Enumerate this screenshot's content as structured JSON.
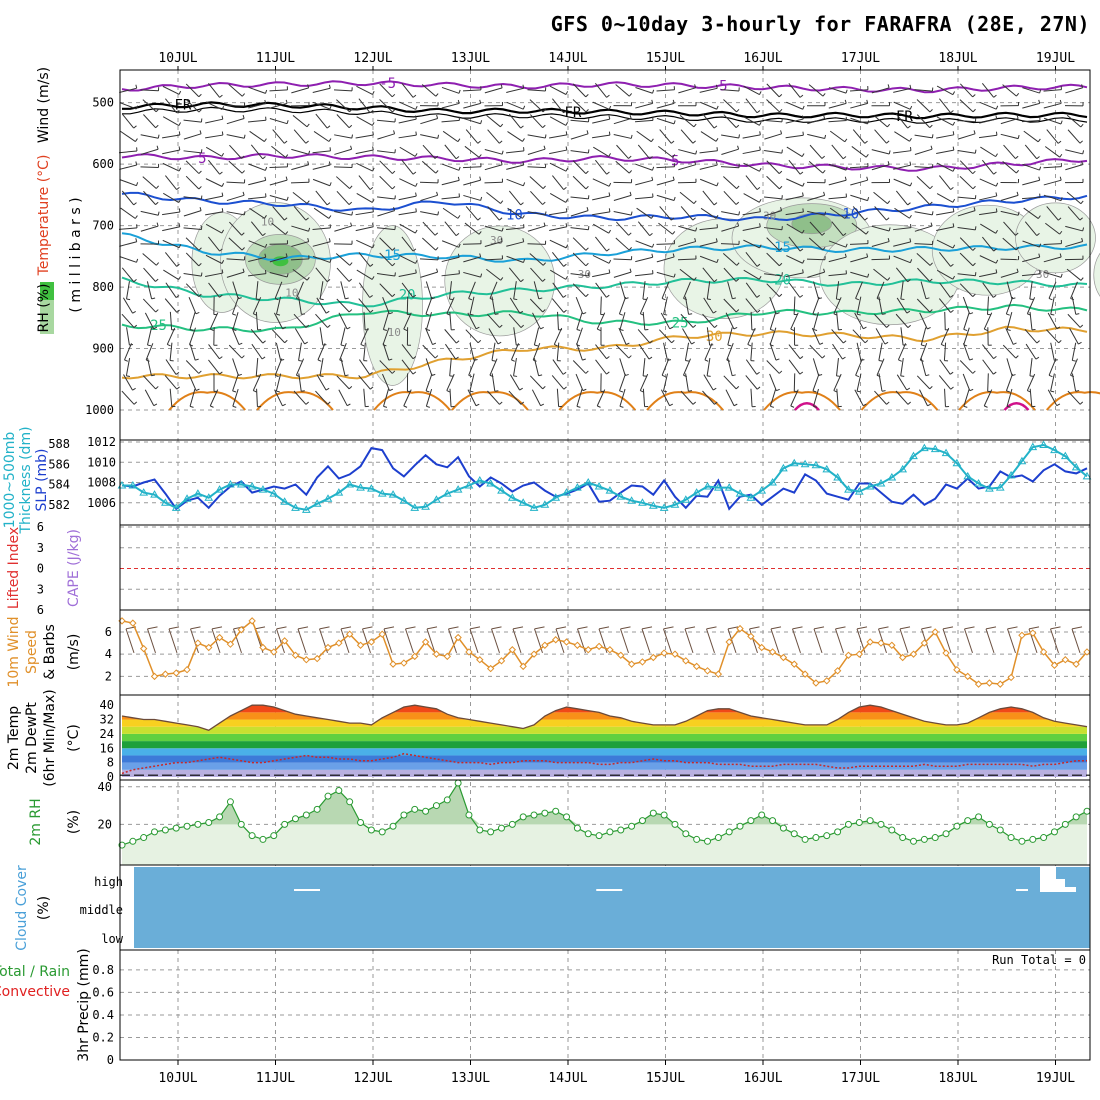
{
  "title": "GFS 0~10day 3-hourly for FARAFRA (28E, 27N)",
  "dates": [
    "10JUL",
    "11JUL",
    "12JUL",
    "13JUL",
    "14JUL",
    "15JUL",
    "16JUL",
    "17JUL",
    "18JUL",
    "19JUL"
  ],
  "labels": {
    "upper_rh": "RH (%)",
    "upper_temp": "Temperature (°C)",
    "upper_wind": "Wind (m/s)",
    "upper_mb": "( m i l l i b a r s )",
    "slp": "SLP (mb)",
    "thick_a": "1000~500mb",
    "thick_b": "Thickness (dm)",
    "li": "Lifted Index",
    "cape": "CAPE (J/kg)",
    "wind_a": "10m Wind",
    "wind_b": "Speed",
    "wind_c": "& Barbs",
    "wind_unit": "(m/s)",
    "temp_a": "2m Temp",
    "temp_b": "2m DewPt",
    "temp_c": "(6hr Min/Max)",
    "temp_unit": "(°C)",
    "rh_a": "2m RH",
    "rh_unit": "(%)",
    "cloud_a": "Cloud Cover",
    "cloud_unit": "(%)",
    "precip_a": "Total / Rain",
    "precip_b": "Convective",
    "precip_c": "3hr Precip (mm)",
    "run_total": "Run Total = 0",
    "contour_FR": "FR"
  },
  "chart_data": [
    {
      "id": "upper_air",
      "type": "heatmap",
      "title": "",
      "ylabel": "(millibars)",
      "yticks": [
        500,
        600,
        700,
        800,
        900,
        1000
      ],
      "ylim": [
        455,
        1000
      ],
      "temperature_contours_C": [
        {
          "value": -5,
          "label": "-5",
          "color": "#8e1fb0",
          "mb": [
            478,
            472,
            470,
            468,
            471,
            474,
            470,
            472,
            475,
            478,
            480,
            476,
            474
          ]
        },
        {
          "value": 0,
          "label": "FR",
          "color": "#000000",
          "mb": [
            507,
            503,
            504,
            508,
            514,
            513,
            515,
            517,
            521,
            520,
            522,
            520,
            520
          ]
        },
        {
          "value": 5,
          "label": "5",
          "color": "#8e1fb0",
          "mb": [
            586,
            590,
            586,
            589,
            591,
            595,
            590,
            594,
            602,
            605,
            608,
            600,
            592
          ]
        },
        {
          "value": 10,
          "label": "10",
          "color": "#1b4fd0",
          "mb": [
            648,
            660,
            665,
            676,
            660,
            682,
            688,
            685,
            690,
            680,
            670,
            660,
            652
          ]
        },
        {
          "value": 15,
          "label": "15",
          "color": "#1aa0d8",
          "mb": [
            715,
            742,
            754,
            748,
            750,
            758,
            745,
            738,
            735,
            740,
            738,
            736,
            734
          ]
        },
        {
          "value": 20,
          "label": "20",
          "color": "#22c098",
          "mb": [
            788,
            812,
            820,
            830,
            812,
            805,
            798,
            790,
            788,
            796,
            790,
            792,
            798
          ]
        },
        {
          "value": 25,
          "label": "25",
          "color": "#24c080",
          "mb": [
            862,
            868,
            870,
            840,
            845,
            842,
            858,
            858,
            840,
            842,
            838,
            832,
            838
          ]
        },
        {
          "value": 30,
          "label": "30",
          "color": "#e0a030",
          "mb": [
            945,
            945,
            945,
            945,
            920,
            900,
            900,
            880,
            875,
            878,
            885,
            868,
            870
          ]
        }
      ],
      "rh_contour_labels": [
        "10",
        "10",
        "30",
        "10",
        "30",
        "10",
        "30",
        "30"
      ],
      "rh_legend_colors": [
        "#e8f4e6",
        "#c3dfbf",
        "#8fbf8a",
        "#60a85d"
      ]
    },
    {
      "id": "slp_thickness",
      "type": "line",
      "title": "",
      "ylabel_left": "1000~500mb Thickness (dm)",
      "ylabel_right": "SLP (mb)",
      "yticks_left": [
        582,
        584,
        586,
        588
      ],
      "yticks_right": [
        1006,
        1008,
        1010,
        1012
      ],
      "ylim_slp": [
        1004,
        1012
      ],
      "series": [
        {
          "name": "SLP (mb)",
          "color": "#1d3fce",
          "values": [
            1007.7,
            1007.6,
            1008.0,
            1008.3,
            1006.9,
            1005.4,
            1006.2,
            1006.5,
            1005.5,
            1006.7,
            1007.6,
            1008.1,
            1007.0,
            1007.3,
            1007.6,
            1007.4,
            1007.8,
            1006.8,
            1008.5,
            1009.6,
            1008.4,
            1008.8,
            1009.6,
            1011.4,
            1011.2,
            1009.4,
            1008.6,
            1009.7,
            1010.7,
            1009.8,
            1009.5,
            1010.5,
            1008.6,
            1007.6,
            1008.5,
            1007.9,
            1007.1,
            1007.7,
            1008.0,
            1007.2,
            1006.6,
            1006.9,
            1007.3,
            1007.9,
            1006.1,
            1006.2,
            1007.0,
            1007.7,
            1007.6,
            1006.8,
            1008.2,
            1006.6,
            1005.5,
            1006.7,
            1006.6,
            1008.2,
            1005.4,
            1006.6,
            1006.8,
            1005.8,
            1006.6,
            1007.4,
            1007.0,
            1008.8,
            1008.2,
            1006.9,
            1006.6,
            1006.3,
            1007.9,
            1007.9,
            1007.0,
            1006.1,
            1005.9,
            1006.8,
            1005.8,
            1006.4,
            1007.8,
            1007.4,
            1008.4,
            1007.4,
            1007.6,
            1009.1,
            1008.5,
            1008.7,
            1008.1,
            1009.2,
            1009.8,
            1009.1,
            1008.9,
            1009.4
          ]
        },
        {
          "name": "1000~500mb Thickness (dm)",
          "color": "#22b2c8",
          "values": [
            1007.7,
            1007.7,
            1007.0,
            1006.8,
            1006.0,
            1005.5,
            1006.4,
            1006.9,
            1006.5,
            1007.3,
            1007.8,
            1007.8,
            1007.6,
            1007.3,
            1006.9,
            1006.1,
            1005.5,
            1005.3,
            1005.9,
            1006.4,
            1007.0,
            1007.8,
            1007.5,
            1007.4,
            1006.9,
            1006.8,
            1006.2,
            1005.5,
            1005.6,
            1006.3,
            1006.9,
            1007.3,
            1007.7,
            1008.2,
            1007.9,
            1007.2,
            1006.5,
            1006.0,
            1005.5,
            1005.8,
            1006.5,
            1007.0,
            1007.5,
            1008.0,
            1007.6,
            1007.2,
            1006.6,
            1006.2,
            1006.0,
            1005.7,
            1005.5,
            1005.8,
            1006.3,
            1007.0,
            1007.6,
            1007.5,
            1007.5,
            1006.9,
            1006.5,
            1007.2,
            1008.0,
            1009.4,
            1009.9,
            1009.8,
            1009.7,
            1009.3,
            1008.5,
            1007.3,
            1007.1,
            1007.6,
            1007.9,
            1008.5,
            1009.3,
            1010.6,
            1011.4,
            1011.3,
            1010.9,
            1009.9,
            1008.6,
            1007.9,
            1007.4,
            1007.5,
            1008.7,
            1010.1,
            1011.5,
            1011.7,
            1011.2,
            1010.6,
            1009.5,
            1008.6
          ]
        }
      ]
    },
    {
      "id": "lifted_index_cape",
      "type": "line",
      "title": "",
      "ylabel_left": "Lifted Index",
      "ylabel_right": "CAPE (J/kg)",
      "yticks": [
        -6,
        -3,
        0,
        3,
        6
      ],
      "ytick_labels": [
        "6",
        "3",
        "0",
        "3",
        "6"
      ],
      "ylim": [
        -6,
        6
      ],
      "reference_line": 0,
      "series": []
    },
    {
      "id": "wind10m",
      "type": "line",
      "title": "",
      "ylabel": "10m Wind Speed & Barbs (m/s)",
      "yticks": [
        2,
        4,
        6
      ],
      "ylim": [
        0.5,
        7.8
      ],
      "series": [
        {
          "name": "10m Wind Speed",
          "color": "#e0902a",
          "values": [
            7.0,
            6.8,
            4.5,
            2.0,
            2.2,
            2.3,
            2.6,
            5.0,
            4.6,
            5.5,
            4.9,
            6.2,
            7.0,
            4.6,
            4.2,
            5.2,
            3.9,
            3.5,
            3.6,
            4.6,
            5.0,
            5.8,
            4.8,
            5.1,
            5.8,
            3.1,
            3.2,
            3.8,
            5.1,
            4.0,
            3.8,
            5.5,
            4.2,
            3.5,
            2.7,
            3.4,
            4.4,
            2.9,
            4.0,
            4.8,
            5.3,
            5.1,
            4.8,
            4.4,
            4.7,
            4.4,
            3.9,
            3.1,
            3.3,
            3.7,
            4.1,
            4.0,
            3.4,
            2.9,
            2.5,
            2.2,
            5.1,
            6.3,
            5.6,
            4.6,
            4.2,
            3.7,
            3.1,
            2.2,
            1.4,
            1.6,
            2.5,
            3.9,
            4.0,
            5.1,
            5.0,
            4.8,
            3.7,
            4.0,
            5.0,
            6.0,
            4.1,
            2.6,
            2.0,
            1.3,
            1.4,
            1.3,
            1.9,
            5.7,
            5.9,
            4.2,
            3.0,
            3.5,
            3.1,
            4.2
          ]
        }
      ]
    },
    {
      "id": "temp2m",
      "type": "area",
      "title": "",
      "ylabel": "2m Temp / 2m DewPt (6hr Min/Max) (°C)",
      "yticks": [
        0,
        8,
        16,
        24,
        32,
        40
      ],
      "ylim": [
        0,
        44
      ],
      "color_bands_C": [
        0,
        4,
        8,
        12,
        16,
        20,
        24,
        28,
        32,
        36,
        40,
        44
      ],
      "band_colors": [
        "#b8b0e0",
        "#6aa0e8",
        "#3d7ad8",
        "#4ab0e8",
        "#1ea03a",
        "#60d040",
        "#c8e030",
        "#f8d020",
        "#f89018",
        "#f04818",
        "#b81808",
        "#580808"
      ],
      "series": [
        {
          "name": "2m Temp",
          "color": "#6b4a3a",
          "values": [
            34,
            33,
            32,
            32,
            31,
            30,
            29,
            28,
            26,
            30,
            34,
            37,
            40,
            40,
            39,
            37,
            35,
            34,
            33,
            32,
            31,
            30,
            30,
            29,
            33,
            36,
            39,
            40,
            39,
            38,
            35,
            33,
            32,
            31,
            30,
            29,
            28,
            27,
            29,
            34,
            37,
            39,
            38,
            37,
            36,
            34,
            33,
            31,
            30,
            29,
            29,
            29,
            31,
            34,
            37,
            38,
            38,
            36,
            34,
            33,
            32,
            31,
            30,
            29,
            29,
            29,
            32,
            36,
            39,
            40,
            39,
            37,
            35,
            33,
            31,
            30,
            29,
            29,
            30,
            33,
            36,
            38,
            39,
            38,
            36,
            33,
            31,
            30,
            29,
            28
          ]
        },
        {
          "name": "2m DewPt",
          "color": "#c82828",
          "values": [
            2,
            4,
            5,
            6,
            7,
            8,
            8,
            9,
            10,
            11,
            10,
            9,
            8,
            8,
            9,
            10,
            11,
            12,
            11,
            11,
            10,
            10,
            9,
            9,
            10,
            11,
            13,
            12,
            11,
            10,
            9,
            8,
            8,
            8,
            7,
            8,
            8,
            9,
            9,
            9,
            8,
            8,
            8,
            8,
            7,
            7,
            8,
            8,
            9,
            10,
            9,
            9,
            8,
            8,
            8,
            7,
            7,
            7,
            6,
            6,
            6,
            7,
            7,
            7,
            7,
            6,
            5,
            5,
            6,
            6,
            6,
            6,
            6,
            6,
            7,
            6,
            6,
            6,
            7,
            7,
            7,
            7,
            7,
            7,
            6,
            7,
            7,
            8,
            9,
            9
          ]
        }
      ]
    },
    {
      "id": "rh2m",
      "type": "area",
      "title": "",
      "ylabel": "2m RH (%)",
      "yticks": [
        20,
        40
      ],
      "ylim": [
        0,
        42
      ],
      "series": [
        {
          "name": "2m RH",
          "color": "#2a9a32",
          "values": [
            9,
            11,
            13,
            16,
            17,
            18,
            19,
            20,
            21,
            24,
            32,
            20,
            14,
            12,
            14,
            20,
            23,
            25,
            28,
            35,
            38,
            32,
            21,
            17,
            16,
            19,
            25,
            28,
            27,
            30,
            33,
            42,
            25,
            17,
            16,
            18,
            20,
            24,
            25,
            26,
            27,
            24,
            18,
            15,
            14,
            16,
            17,
            19,
            22,
            26,
            25,
            20,
            15,
            12,
            11,
            13,
            16,
            19,
            22,
            25,
            22,
            18,
            15,
            12,
            13,
            14,
            16,
            20,
            21,
            22,
            20,
            17,
            13,
            11,
            12,
            13,
            15,
            19,
            22,
            24,
            20,
            17,
            13,
            11,
            12,
            13,
            16,
            20,
            24,
            27
          ]
        }
      ]
    },
    {
      "id": "cloud_cover",
      "type": "heatmap",
      "title": "",
      "ylabel": "Cloud Cover (%)",
      "rows": [
        "high",
        "middle",
        "low"
      ],
      "background_color": "#6aaed8",
      "high_cloud_marks_day": [
        1.6,
        4.7,
        9.8,
        9.95
      ]
    },
    {
      "id": "precip3h",
      "type": "bar",
      "title": "",
      "ylabel": "3hr Precip (mm)",
      "yticks": [
        0,
        0.2,
        0.4,
        0.6,
        0.8
      ],
      "ylim": [
        0,
        0.95
      ],
      "series": [
        {
          "name": "Total / Rain",
          "color": "#2a9a32",
          "values": []
        },
        {
          "name": "Convective",
          "color": "#e02020",
          "values": []
        }
      ]
    }
  ]
}
